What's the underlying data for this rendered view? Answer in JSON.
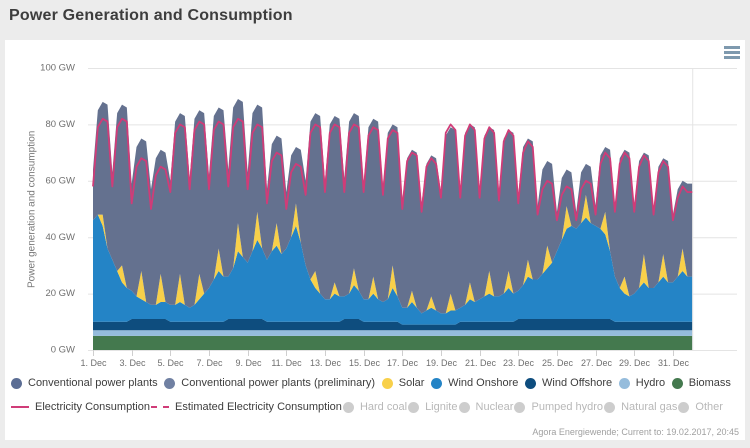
{
  "page": {
    "title": "Power Generation and Consumption",
    "footer": "Agora Energiewende; Current to: 19.02.2017, 20:45"
  },
  "colors": {
    "background": "#ececec",
    "panel": "#ffffff",
    "grid": "#e4e4e4",
    "tick": "#cfcfcf",
    "axis_text": "#6f6f6f",
    "consumption_line": "#d03c78",
    "conventional": "#64718f",
    "conventional_preliminary": "#7080a2",
    "solar": "#f8d04a",
    "wind_onshore": "#2484c6",
    "wind_offshore": "#0e4d7e",
    "hydro": "#95bcdc",
    "biomass": "#44794e",
    "disabled_dot": "#cdcdcd",
    "menu_icon": "#7e99ae"
  },
  "chart_data": {
    "type": "area",
    "stacked": true,
    "title": "Power Generation and Consumption",
    "ylabel": "Power generation and consumption",
    "unit": "GW",
    "ylim": [
      0,
      100
    ],
    "grid": "horizontal",
    "legend_position": "bottom",
    "y_ticks": [
      "0 GW",
      "20 GW",
      "40 GW",
      "60 GW",
      "80 GW",
      "100 GW"
    ],
    "x_ticks": [
      "1. Dec",
      "3. Dec",
      "5. Dec",
      "7. Dec",
      "9. Dec",
      "11. Dec",
      "13. Dec",
      "15. Dec",
      "17. Dec",
      "19. Dec",
      "21. Dec",
      "23. Dec",
      "25. Dec",
      "27. Dec",
      "29. Dec",
      "31. Dec"
    ],
    "days": 31,
    "samples_per_day": 4,
    "series": [
      {
        "name": "Biomass",
        "kind": "area",
        "color": "#44794e",
        "values": [
          5
        ]
      },
      {
        "name": "Hydro",
        "kind": "area",
        "color": "#95bcdc",
        "values": [
          2
        ]
      },
      {
        "name": "Wind Offshore",
        "kind": "area",
        "color": "#0e4d7e",
        "values": [
          3,
          3,
          4,
          4,
          3,
          3,
          3,
          4,
          4,
          3,
          3,
          3,
          3,
          4,
          3,
          3,
          2,
          2,
          2,
          3,
          3,
          3,
          4,
          4,
          4,
          4,
          4,
          3,
          3,
          3,
          3
        ]
      },
      {
        "name": "Wind Onshore",
        "kind": "area",
        "color": "#2484c6",
        "values": [
          36,
          38,
          34,
          26,
          22,
          18,
          14,
          12,
          10,
          8,
          7,
          6,
          5,
          5,
          6,
          6,
          6,
          6,
          7,
          6,
          5,
          6,
          8,
          10,
          12,
          15,
          18,
          16,
          15,
          18,
          24,
          22,
          20,
          24,
          28,
          25,
          22,
          25,
          27,
          24,
          26,
          30,
          34,
          28,
          20,
          15,
          12,
          10,
          8,
          8,
          10,
          9,
          8,
          9,
          12,
          10,
          8,
          8,
          10,
          8,
          7,
          8,
          12,
          9,
          6,
          6,
          8,
          6,
          4,
          5,
          6,
          5,
          4,
          4,
          5,
          5,
          5,
          6,
          8,
          7,
          8,
          9,
          10,
          9,
          9,
          10,
          12,
          10,
          10,
          12,
          15,
          14,
          14,
          16,
          18,
          20,
          24,
          28,
          32,
          33,
          32,
          34,
          36,
          34,
          33,
          32,
          30,
          24,
          16,
          12,
          10,
          9,
          10,
          12,
          14,
          12,
          12,
          14,
          16,
          14,
          14,
          16,
          18,
          16
        ]
      },
      {
        "name": "Solar",
        "kind": "area",
        "color": "#f8d04a",
        "values": [
          0,
          0,
          4,
          0,
          0,
          0,
          6,
          0,
          0,
          0,
          10,
          0,
          0,
          0,
          10,
          0,
          0,
          0,
          10,
          0,
          0,
          0,
          9,
          0,
          0,
          0,
          8,
          0,
          0,
          0,
          10,
          0,
          0,
          0,
          10,
          0,
          0,
          0,
          8,
          0,
          0,
          0,
          8,
          0,
          0,
          0,
          6,
          0,
          0,
          0,
          4,
          0,
          0,
          0,
          6,
          0,
          0,
          0,
          6,
          0,
          0,
          0,
          8,
          0,
          0,
          0,
          4,
          0,
          0,
          0,
          4,
          0,
          0,
          0,
          6,
          0,
          0,
          0,
          6,
          0,
          0,
          0,
          8,
          0,
          0,
          0,
          6,
          0,
          0,
          0,
          6,
          0,
          0,
          0,
          8,
          0,
          0,
          0,
          8,
          0,
          0,
          0,
          8,
          0,
          0,
          0,
          8,
          0,
          0,
          0,
          6,
          0,
          0,
          0,
          10,
          0,
          0,
          0,
          8,
          0,
          0,
          0,
          8,
          0
        ]
      },
      {
        "name": "Conventional power plants",
        "kind": "area",
        "color": "#64718f",
        "values": [
          18,
          37,
          40,
          51,
          31,
          56,
          57,
          64,
          38,
          53,
          47,
          57,
          41,
          52,
          44,
          53,
          44,
          65,
          57,
          67,
          46,
          66,
          58,
          64,
          40,
          58,
          50,
          59,
          38,
          57,
          44,
          55,
          32,
          49,
          38,
          50,
          25,
          38,
          31,
          41,
          20,
          29,
          20,
          33,
          30,
          56,
          56,
          63,
          42,
          62,
          59,
          63,
          42,
          61,
          55,
          62,
          41,
          61,
          56,
          63,
          41,
          59,
          50,
          60,
          38,
          53,
          50,
          55,
          39,
          52,
          50,
          54,
          43,
          63,
          59,
          64,
          42,
          61,
          56,
          62,
          38,
          57,
          51,
          59,
          37,
          55,
          50,
          57,
          34,
          49,
          43,
          49,
          26,
          37,
          30,
          35,
          14,
          22,
          13,
          19,
          6,
          18,
          11,
          20,
          7,
          26,
          23,
          36,
          25,
          46,
          45,
          51,
          31,
          45,
          36,
          47,
          28,
          41,
          34,
          43,
          24,
          31,
          24,
          33
        ]
      },
      {
        "name": "Electricity Consumption",
        "kind": "line",
        "color": "#d03c78",
        "values": [
          58,
          79,
          82,
          81,
          58,
          79,
          82,
          81,
          52,
          65,
          68,
          67,
          50,
          62,
          65,
          64,
          56,
          77,
          80,
          79,
          57,
          78,
          81,
          80,
          57,
          78,
          81,
          80,
          58,
          79,
          82,
          81,
          57,
          77,
          80,
          79,
          52,
          67,
          70,
          69,
          50,
          63,
          66,
          65,
          55,
          77,
          80,
          79,
          56,
          77,
          80,
          79,
          56,
          77,
          80,
          79,
          56,
          76,
          79,
          78,
          55,
          75,
          78,
          77,
          50,
          67,
          70,
          69,
          49,
          65,
          68,
          66,
          54,
          77,
          80,
          78,
          54,
          76,
          80,
          78,
          54,
          75,
          79,
          77,
          53,
          74,
          78,
          76,
          52,
          70,
          74,
          72,
          48,
          57,
          60,
          59,
          46,
          55,
          58,
          57,
          46,
          57,
          60,
          59,
          48,
          66,
          70,
          68,
          49,
          66,
          70,
          68,
          49,
          65,
          69,
          67,
          48,
          63,
          67,
          65,
          46,
          54,
          58,
          56
        ]
      }
    ]
  },
  "legend": {
    "row1": [
      {
        "label": "Conventional power plants",
        "slug": "conventional-power-plants",
        "type": "dot",
        "color": "#5b6d94",
        "disabled": false
      },
      {
        "label": "Conventional power plants (preliminary)",
        "slug": "conventional-power-plants-preliminary",
        "type": "dot",
        "color": "#7080a2",
        "disabled": false
      },
      {
        "label": "Solar",
        "slug": "solar",
        "type": "dot",
        "color": "#f8d04a",
        "disabled": false
      },
      {
        "label": "Wind Onshore",
        "slug": "wind-onshore",
        "type": "dot",
        "color": "#2484c6",
        "disabled": false
      },
      {
        "label": "Wind Offshore",
        "slug": "wind-offshore",
        "type": "dot",
        "color": "#0e4d7e",
        "disabled": false
      },
      {
        "label": "Hydro",
        "slug": "hydro",
        "type": "dot",
        "color": "#95bcdc",
        "disabled": false
      },
      {
        "label": "Biomass",
        "slug": "biomass",
        "type": "dot",
        "color": "#44794e",
        "disabled": false
      }
    ],
    "row2": [
      {
        "label": "Electricity Consumption",
        "slug": "electricity-consumption",
        "type": "line",
        "color": "#d03c78",
        "disabled": false
      },
      {
        "label": "Estimated Electricity Consumption",
        "slug": "estimated-electricity-consumption",
        "type": "dashed",
        "color": "#d03c78",
        "disabled": false
      },
      {
        "label": "Hard coal",
        "slug": "hard-coal",
        "type": "dot",
        "color": "#cdcdcd",
        "disabled": true
      },
      {
        "label": "Lignite",
        "slug": "lignite",
        "type": "dot",
        "color": "#cdcdcd",
        "disabled": true
      },
      {
        "label": "Nuclear",
        "slug": "nuclear",
        "type": "dot",
        "color": "#cdcdcd",
        "disabled": true
      },
      {
        "label": "Pumped hydro",
        "slug": "pumped-hydro",
        "type": "dot",
        "color": "#cdcdcd",
        "disabled": true
      },
      {
        "label": "Natural gas",
        "slug": "natural-gas",
        "type": "dot",
        "color": "#cdcdcd",
        "disabled": true
      },
      {
        "label": "Other",
        "slug": "other",
        "type": "dot",
        "color": "#cdcdcd",
        "disabled": true
      }
    ]
  }
}
